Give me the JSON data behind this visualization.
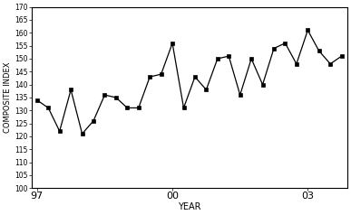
{
  "xlabel": "YEAR",
  "ylabel": "COMPOSITE INDEX",
  "ylim": [
    100,
    170
  ],
  "yticks": [
    100,
    105,
    110,
    115,
    120,
    125,
    130,
    135,
    140,
    145,
    150,
    155,
    160,
    165,
    170
  ],
  "quarters": [
    134,
    131,
    122,
    138,
    121,
    126,
    136,
    135,
    131,
    131,
    143,
    144,
    156,
    131,
    143,
    138,
    150,
    151,
    136,
    150,
    140,
    154,
    156,
    148,
    161,
    153,
    148,
    151
  ],
  "xtick_positions": [
    0,
    12,
    24
  ],
  "xtick_labels": [
    "97",
    "00",
    "03"
  ],
  "xlim": [
    -0.5,
    27.5
  ],
  "line_color": "#000000",
  "marker": "s",
  "marker_size": 3.5,
  "line_width": 0.9,
  "bg_color": "#ffffff",
  "ylabel_fontsize": 6,
  "xlabel_fontsize": 7,
  "ytick_fontsize": 5.5,
  "xtick_fontsize": 8
}
